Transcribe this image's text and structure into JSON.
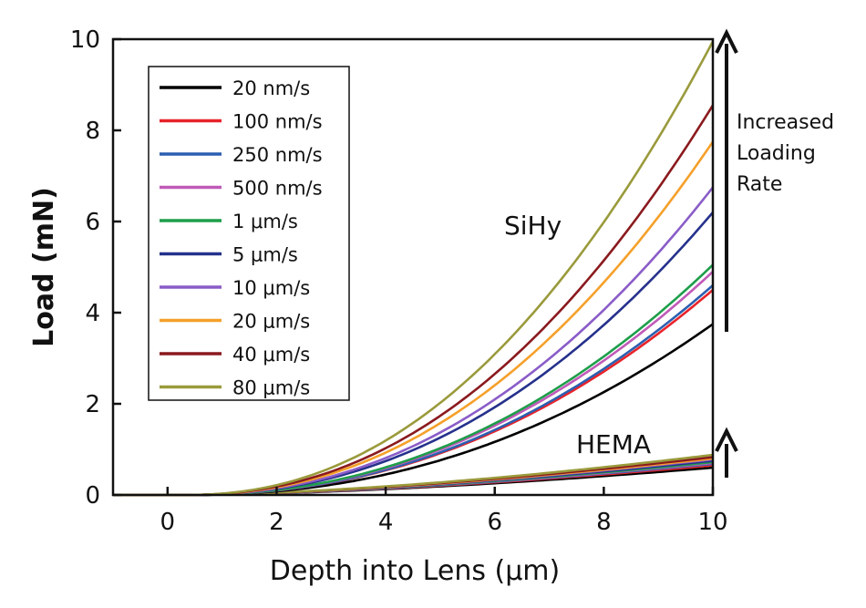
{
  "chart_data": {
    "type": "line",
    "xlabel": "Depth into Lens (μm)",
    "ylabel": "Load (mN)",
    "xlim": [
      -1,
      10
    ],
    "ylim": [
      0,
      10
    ],
    "xticks": [
      0,
      2,
      4,
      6,
      8,
      10
    ],
    "yticks": [
      0,
      2,
      4,
      6,
      8,
      10
    ],
    "legend_position": "top-left",
    "annotations": {
      "sihy": "SiHy",
      "hema": "HEMA",
      "rate_line1": "Increased",
      "rate_line2": "Loading",
      "rate_line3": "Rate"
    },
    "series": [
      {
        "name": "20 nm/s",
        "color": "#000000",
        "sihy_max": 3.75,
        "hema_max": 0.6
      },
      {
        "name": "100 nm/s",
        "color": "#e8232a",
        "sihy_max": 4.5,
        "hema_max": 0.65
      },
      {
        "name": "250 nm/s",
        "color": "#2c5fb0",
        "sihy_max": 4.6,
        "hema_max": 0.68
      },
      {
        "name": "500 nm/s",
        "color": "#c05ab8",
        "sihy_max": 4.9,
        "hema_max": 0.7
      },
      {
        "name": "1 μm/s",
        "color": "#1e9e4a",
        "sihy_max": 5.05,
        "hema_max": 0.72
      },
      {
        "name": "5 μm/s",
        "color": "#25318c",
        "sihy_max": 6.2,
        "hema_max": 0.75
      },
      {
        "name": "10 μm/s",
        "color": "#8a5cc8",
        "sihy_max": 6.75,
        "hema_max": 0.78
      },
      {
        "name": "20 μm/s",
        "color": "#f5a02a",
        "sihy_max": 7.75,
        "hema_max": 0.8
      },
      {
        "name": "40 μm/s",
        "color": "#8a1a1e",
        "sihy_max": 8.55,
        "hema_max": 0.83
      },
      {
        "name": "80 μm/s",
        "color": "#9a9a3c",
        "sihy_max": 9.95,
        "hema_max": 0.88
      }
    ]
  }
}
